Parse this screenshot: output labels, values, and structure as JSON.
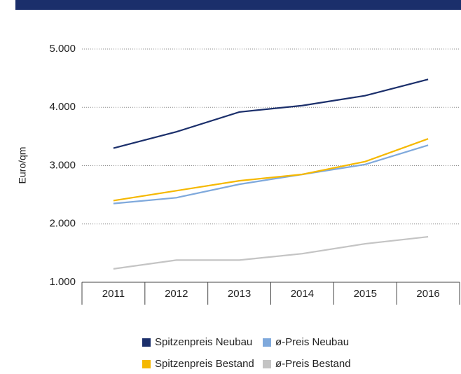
{
  "chart_data": {
    "type": "line",
    "y_label": "Euro/qm",
    "categories": [
      "2011",
      "2012",
      "2013",
      "2014",
      "2015",
      "2016"
    ],
    "series": [
      {
        "name": "Spitzenpreis Neubau",
        "color": "#1b2f6b",
        "values": [
          3300,
          3580,
          3920,
          4030,
          4200,
          4480
        ]
      },
      {
        "name": "ø-Preis Neubau",
        "color": "#7fa9dc",
        "values": [
          2350,
          2450,
          2680,
          2850,
          3020,
          3350
        ]
      },
      {
        "name": "Spitzenpreis Bestand",
        "color": "#f5b800",
        "values": [
          2400,
          2570,
          2740,
          2850,
          3070,
          3460
        ]
      },
      {
        "name": "ø-Preis Bestand",
        "color": "#c4c4c4",
        "values": [
          1230,
          1380,
          1380,
          1490,
          1660,
          1780
        ]
      }
    ],
    "ylim": [
      1000,
      5000
    ],
    "yticks": [
      {
        "value": 1000,
        "label": "1.000"
      },
      {
        "value": 2000,
        "label": "2.000"
      },
      {
        "value": 3000,
        "label": "3.000"
      },
      {
        "value": 4000,
        "label": "4.000"
      },
      {
        "value": 5000,
        "label": "5.000"
      }
    ],
    "grid": true
  }
}
